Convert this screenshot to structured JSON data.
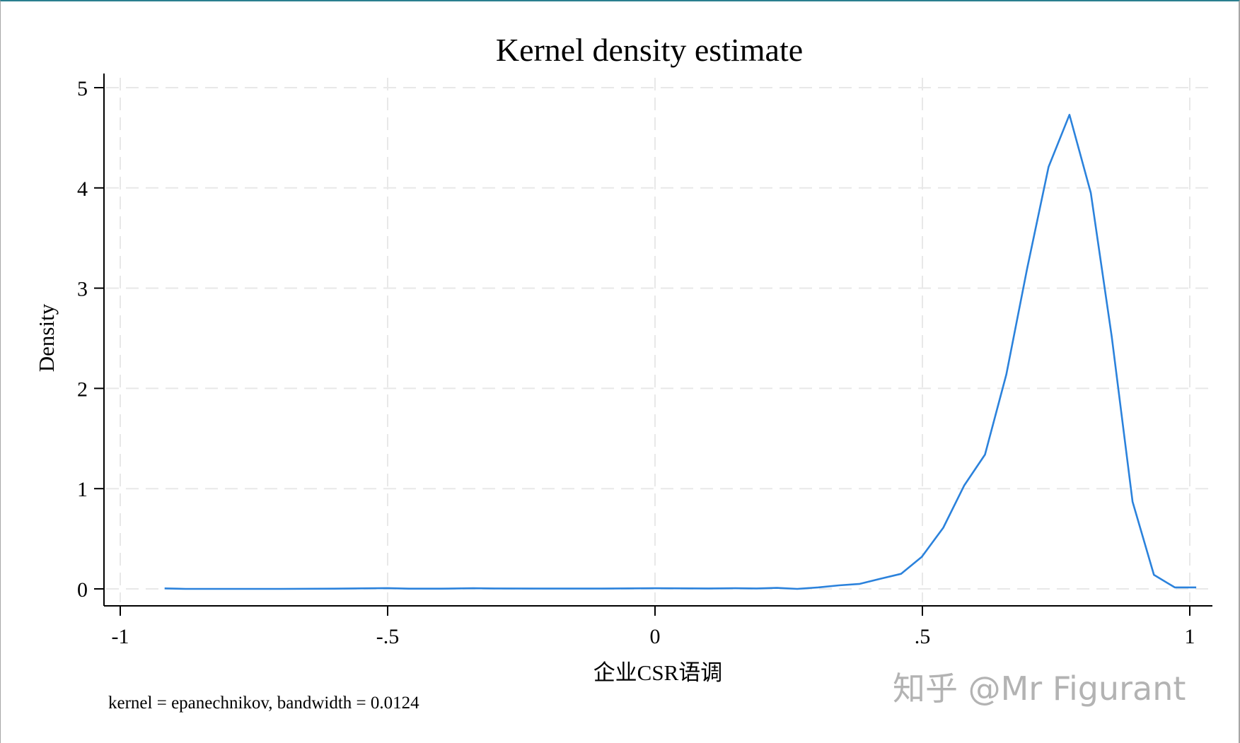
{
  "chart_data": {
    "type": "line",
    "title": "Kernel density estimate",
    "xlabel": "企业CSR语调",
    "ylabel": "Density",
    "note": "kernel = epanechnikov, bandwidth = 0.0124",
    "xlim": [
      -1,
      1
    ],
    "ylim": [
      0,
      5
    ],
    "x_ticks": [
      -1,
      -0.5,
      0,
      0.5,
      1
    ],
    "x_tick_labels": [
      "-1",
      "-.5",
      "0",
      ".5",
      "1"
    ],
    "y_ticks": [
      0,
      1,
      2,
      3,
      4,
      5
    ],
    "y_tick_labels": [
      "0",
      "1",
      "2",
      "3",
      "4",
      "5"
    ],
    "grid": true,
    "legend": "none",
    "series": [
      {
        "name": "Density",
        "color": "#2b82dc",
        "x": [
          -0.917,
          -0.878,
          -0.8,
          -0.7,
          -0.6,
          -0.5,
          -0.46,
          -0.4,
          -0.34,
          -0.3,
          -0.2,
          -0.1,
          0.0,
          0.1,
          0.15,
          0.19,
          0.228,
          0.266,
          0.305,
          0.344,
          0.383,
          0.421,
          0.46,
          0.499,
          0.539,
          0.578,
          0.617,
          0.657,
          0.696,
          0.736,
          0.775,
          0.815,
          0.854,
          0.893,
          0.933,
          0.972,
          1.012
        ],
        "y": [
          0.005,
          0.0,
          0.0,
          0.0,
          0.002,
          0.008,
          0.002,
          0.002,
          0.006,
          0.004,
          0.003,
          0.003,
          0.006,
          0.004,
          0.006,
          0.004,
          0.01,
          0.0,
          0.015,
          0.035,
          0.05,
          0.1,
          0.15,
          0.32,
          0.61,
          1.03,
          1.34,
          2.14,
          3.2,
          4.21,
          4.73,
          3.95,
          2.52,
          0.87,
          0.14,
          0.015,
          0.015
        ]
      }
    ]
  },
  "watermark": "知乎 @Mr Figurant",
  "colors": {
    "line": "#2b82dc",
    "grid": "#e8e8e8",
    "axis": "#000000",
    "watermark": "#b3b3b3"
  }
}
